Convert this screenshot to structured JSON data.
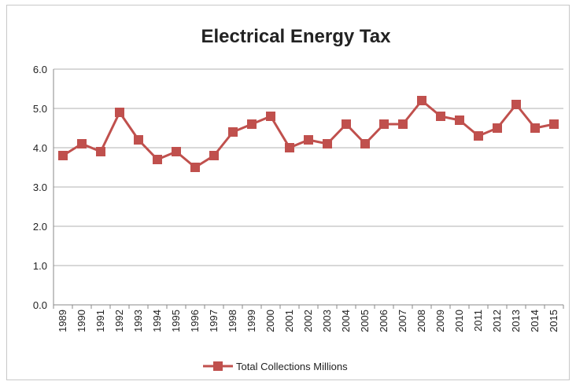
{
  "chart_data": {
    "type": "line",
    "title": "Electrical Energy Tax",
    "xlabel": "",
    "ylabel": "",
    "ylim": [
      0,
      6
    ],
    "yticks": [
      "0.0",
      "1.0",
      "2.0",
      "3.0",
      "4.0",
      "5.0",
      "6.0"
    ],
    "grid": true,
    "legend_position": "bottom",
    "marker": "square",
    "line_color": "#c0504d",
    "categories": [
      "1989",
      "1990",
      "1991",
      "1992",
      "1993",
      "1994",
      "1995",
      "1996",
      "1997",
      "1998",
      "1999",
      "2000",
      "2001",
      "2002",
      "2003",
      "2004",
      "2005",
      "2006",
      "2007",
      "2008",
      "2009",
      "2010",
      "2011",
      "2012",
      "2013",
      "2014",
      "2015"
    ],
    "series": [
      {
        "name": "Total Collections Millions",
        "values": [
          3.8,
          4.1,
          3.9,
          4.9,
          4.2,
          3.7,
          3.9,
          3.5,
          3.8,
          4.4,
          4.6,
          4.8,
          4.0,
          4.2,
          4.1,
          4.6,
          4.1,
          4.6,
          4.6,
          5.2,
          4.8,
          4.7,
          4.3,
          4.5,
          5.1,
          4.5,
          4.6
        ]
      }
    ]
  }
}
